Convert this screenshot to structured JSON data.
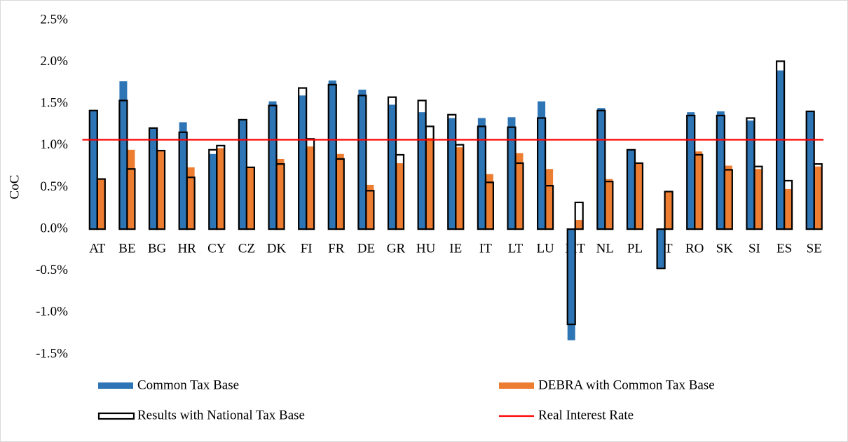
{
  "chart_data": {
    "type": "bar",
    "y_label": "CoC",
    "categories": [
      "AT",
      "BE",
      "BG",
      "HR",
      "CY",
      "CZ",
      "DK",
      "FI",
      "FR",
      "DE",
      "GR",
      "HU",
      "IE",
      "IT",
      "LT",
      "LU",
      "MT",
      "NL",
      "PL",
      "PT",
      "RO",
      "SK",
      "SI",
      "ES",
      "SE"
    ],
    "series": [
      {
        "name": "Common Tax Base",
        "color": "#2e75b6",
        "values": [
          1.42,
          1.77,
          1.21,
          1.28,
          0.9,
          1.31,
          1.53,
          1.6,
          1.78,
          1.67,
          1.49,
          1.4,
          1.33,
          1.33,
          1.34,
          1.53,
          -1.33,
          1.45,
          0.95,
          -0.46,
          1.4,
          1.41,
          1.3,
          1.9,
          1.41
        ]
      },
      {
        "name": "DEBRA with Common Tax Base",
        "color": "#ed7d31",
        "values": [
          0.6,
          0.95,
          0.94,
          0.74,
          0.97,
          0.74,
          0.84,
          0.99,
          0.9,
          0.53,
          0.79,
          1.09,
          0.98,
          0.66,
          0.91,
          0.72,
          0.11,
          0.6,
          0.79,
          0.45,
          0.93,
          0.76,
          0.72,
          0.48,
          0.75
        ]
      }
    ],
    "outline": {
      "name": "Results with National Tax Base",
      "color": "#000000",
      "values": [
        1.42,
        1.54,
        1.21,
        1.16,
        0.95,
        1.31,
        1.48,
        1.69,
        1.73,
        1.6,
        1.58,
        1.54,
        1.37,
        1.23,
        1.22,
        1.33,
        -1.14,
        1.42,
        0.95,
        -0.47,
        1.36,
        1.36,
        1.33,
        2.01,
        1.41
      ],
      "debra_values": [
        0.6,
        0.72,
        0.94,
        0.62,
        1.0,
        0.74,
        0.78,
        1.08,
        0.84,
        0.46,
        0.89,
        1.23,
        1.01,
        0.56,
        0.79,
        0.52,
        0.32,
        0.57,
        0.79,
        0.45,
        0.89,
        0.71,
        0.75,
        0.58,
        0.78
      ]
    },
    "reference_line": {
      "name": "Real Interest Rate",
      "color": "#ff0000",
      "value": 1.07
    },
    "ylim": [
      -1.5,
      2.5
    ],
    "yticks": [
      {
        "value": -1.5,
        "label": "-1.5%"
      },
      {
        "value": -1.0,
        "label": "-1.0%"
      },
      {
        "value": -0.5,
        "label": "-0.5%"
      },
      {
        "value": 0,
        "label": "0.0%"
      },
      {
        "value": 0.5,
        "label": "0.5%"
      },
      {
        "value": 1.0,
        "label": "1.0%"
      },
      {
        "value": 1.5,
        "label": "1.5%"
      },
      {
        "value": 2.0,
        "label": "2.0%"
      },
      {
        "value": 2.5,
        "label": "2.5%"
      }
    ],
    "grid": false
  }
}
